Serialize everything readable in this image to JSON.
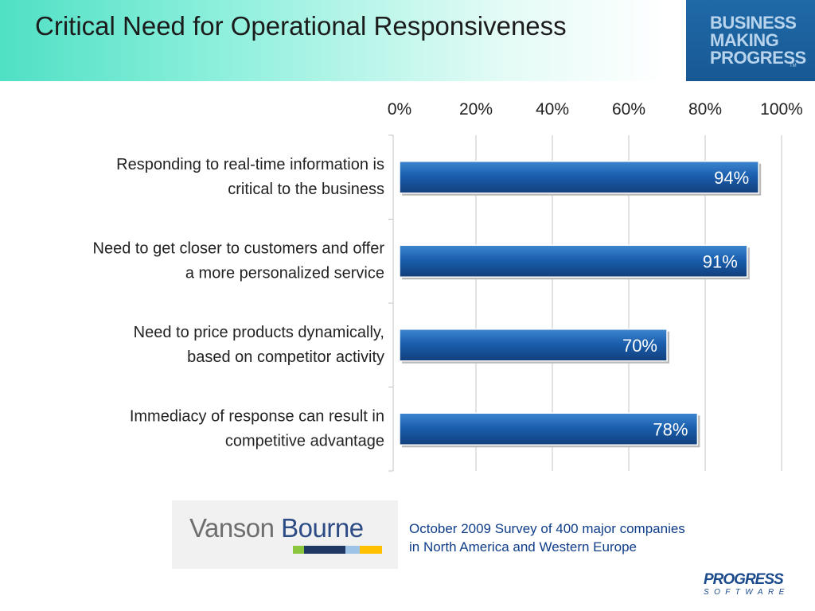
{
  "slide": {
    "title": "Critical Need for Operational Responsiveness",
    "brand": {
      "lines": [
        "BUSINESS",
        "MAKING",
        "PROGRESS"
      ],
      "tm": "TM"
    },
    "source_logo": {
      "word1": "Vanson",
      "word2": "Bourne",
      "strip_colors": [
        "#8cc63f",
        "#1f3864",
        "#9dc3e6",
        "#ffc000"
      ]
    },
    "survey_note": [
      "October 2009 Survey of 400 major companies",
      "in North America and Western Europe"
    ],
    "footer_logo": {
      "name": "PROGRESS",
      "sub": "SOFTWARE"
    }
  },
  "chart_data": {
    "type": "bar",
    "orientation": "horizontal",
    "categories": [
      [
        "Responding to real-time information is",
        "critical to the business"
      ],
      [
        "Need to get closer to customers and offer",
        "a more personalized service"
      ],
      [
        "Need to price products dynamically,",
        "based on competitor activity"
      ],
      [
        "Immediacy of response can result in",
        "competitive advantage"
      ]
    ],
    "values": [
      94,
      91,
      70,
      78
    ],
    "data_labels": [
      "94%",
      "91%",
      "70%",
      "78%"
    ],
    "xlim": [
      0,
      100
    ],
    "x_ticks": [
      0,
      20,
      40,
      60,
      80,
      100
    ],
    "x_tick_labels": [
      "0%",
      "20%",
      "40%",
      "60%",
      "80%",
      "100%"
    ],
    "x_axis_position": "top",
    "grid": true,
    "colors": {
      "bar": "#1a5fae",
      "grid": "#c4c4c4",
      "text": "#222222"
    }
  }
}
